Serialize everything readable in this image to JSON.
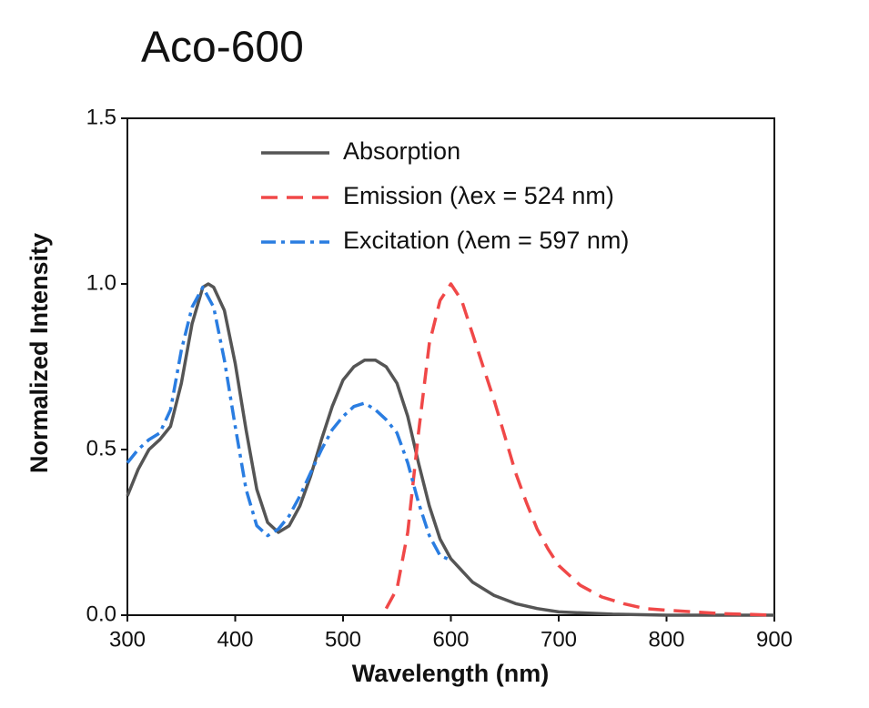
{
  "chart_data": {
    "type": "line",
    "title": "Aco-600",
    "x_label": "Wavelength (nm)",
    "y_label": "Normalized Intensity",
    "xlim": [
      300,
      900
    ],
    "xticks": [
      300,
      400,
      500,
      600,
      700,
      800,
      900
    ],
    "ylim": [
      0,
      1.5
    ],
    "yticks": [
      {
        "value": 0,
        "label": "0.0"
      },
      {
        "value": 0.5,
        "label": "0.5"
      },
      {
        "value": 1,
        "label": "1.0"
      },
      {
        "value": 1.5,
        "label": "1.5"
      }
    ],
    "series": [
      {
        "name": "Absorption",
        "color": "#555555",
        "dash": "none",
        "x": [
          300,
          310,
          320,
          330,
          340,
          350,
          360,
          370,
          375,
          380,
          390,
          400,
          410,
          420,
          430,
          440,
          450,
          460,
          470,
          480,
          490,
          500,
          510,
          520,
          530,
          540,
          550,
          560,
          570,
          580,
          590,
          600,
          620,
          640,
          660,
          680,
          700,
          750,
          800,
          900
        ],
        "values": [
          0.36,
          0.44,
          0.5,
          0.53,
          0.57,
          0.7,
          0.88,
          0.99,
          1.0,
          0.99,
          0.92,
          0.76,
          0.56,
          0.38,
          0.28,
          0.25,
          0.27,
          0.33,
          0.42,
          0.53,
          0.63,
          0.71,
          0.75,
          0.77,
          0.77,
          0.75,
          0.7,
          0.6,
          0.46,
          0.33,
          0.23,
          0.17,
          0.1,
          0.06,
          0.035,
          0.02,
          0.01,
          0.003,
          0,
          0
        ]
      },
      {
        "name": "Emission (λex = 524 nm)",
        "color": "#f04848",
        "dash": "18,10",
        "x": [
          540,
          550,
          560,
          570,
          580,
          590,
          600,
          610,
          620,
          630,
          640,
          650,
          660,
          670,
          680,
          690,
          700,
          720,
          740,
          760,
          780,
          800,
          850,
          900
        ],
        "values": [
          0.02,
          0.08,
          0.25,
          0.55,
          0.82,
          0.95,
          1.0,
          0.95,
          0.85,
          0.75,
          0.65,
          0.54,
          0.43,
          0.34,
          0.26,
          0.2,
          0.15,
          0.09,
          0.055,
          0.035,
          0.02,
          0.015,
          0.005,
          0
        ]
      },
      {
        "name": "Excitation (λem = 597 nm)",
        "color": "#2a7de1",
        "dash": "16,6,4,6",
        "x": [
          300,
          310,
          320,
          330,
          340,
          350,
          360,
          370,
          380,
          390,
          400,
          410,
          420,
          430,
          440,
          450,
          460,
          470,
          480,
          490,
          500,
          510,
          520,
          530,
          540,
          550,
          560,
          570,
          580,
          590,
          597
        ],
        "values": [
          0.46,
          0.5,
          0.53,
          0.55,
          0.62,
          0.8,
          0.93,
          0.99,
          0.93,
          0.77,
          0.57,
          0.38,
          0.27,
          0.24,
          0.26,
          0.3,
          0.36,
          0.43,
          0.5,
          0.56,
          0.6,
          0.63,
          0.64,
          0.62,
          0.59,
          0.55,
          0.46,
          0.34,
          0.24,
          0.18,
          0.17
        ]
      }
    ]
  }
}
